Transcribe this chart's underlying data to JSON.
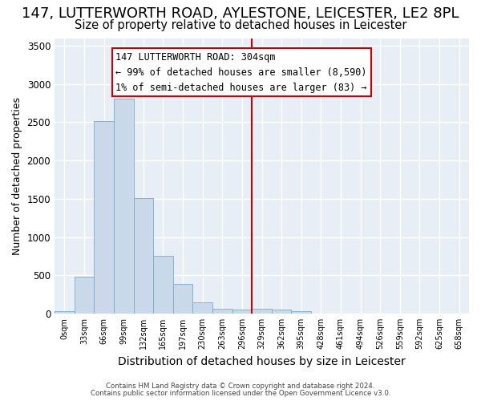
{
  "title1": "147, LUTTERWORTH ROAD, AYLESTONE, LEICESTER, LE2 8PL",
  "title2": "Size of property relative to detached houses in Leicester",
  "xlabel": "Distribution of detached houses by size in Leicester",
  "ylabel": "Number of detached properties",
  "bar_color": "#c9d9ea",
  "bar_edge_color": "#7aaacc",
  "categories": [
    "0sqm",
    "33sqm",
    "66sqm",
    "99sqm",
    "132sqm",
    "165sqm",
    "197sqm",
    "230sqm",
    "263sqm",
    "296sqm",
    "329sqm",
    "362sqm",
    "395sqm",
    "428sqm",
    "461sqm",
    "494sqm",
    "526sqm",
    "559sqm",
    "592sqm",
    "625sqm",
    "658sqm"
  ],
  "values": [
    30,
    480,
    2510,
    2810,
    1510,
    750,
    390,
    150,
    65,
    55,
    65,
    50,
    30,
    0,
    0,
    0,
    0,
    0,
    0,
    0,
    0
  ],
  "vline_index": 9,
  "vline_color": "#cc0000",
  "annotation_text": "147 LUTTERWORTH ROAD: 304sqm\n← 99% of detached houses are smaller (8,590)\n1% of semi-detached houses are larger (83) →",
  "annotation_box_color": "#cc0000",
  "ylim": [
    0,
    3600
  ],
  "yticks": [
    0,
    500,
    1000,
    1500,
    2000,
    2500,
    3000,
    3500
  ],
  "footer1": "Contains HM Land Registry data © Crown copyright and database right 2024.",
  "footer2": "Contains public sector information licensed under the Open Government Licence v3.0.",
  "background_color": "#e8eef5",
  "title1_fontsize": 13,
  "title2_fontsize": 10.5,
  "xlabel_fontsize": 10,
  "ylabel_fontsize": 9
}
